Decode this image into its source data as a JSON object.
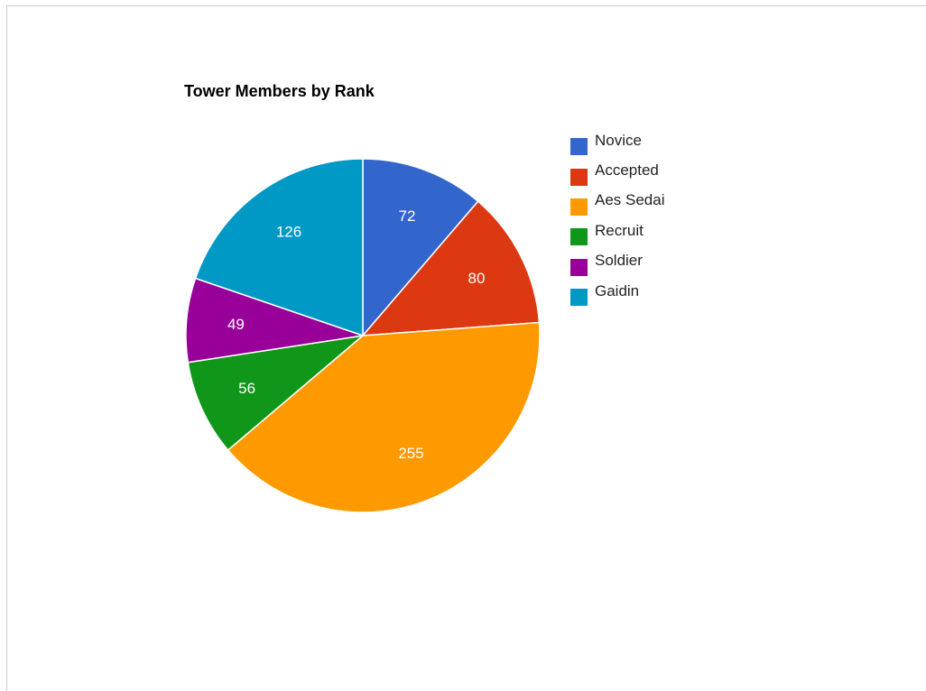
{
  "chart_data": {
    "type": "pie",
    "title": "Tower Members by Rank",
    "categories": [
      "Novice",
      "Accepted",
      "Aes Sedai",
      "Recruit",
      "Soldier",
      "Gaidin"
    ],
    "values": [
      72,
      80,
      255,
      56,
      49,
      126
    ],
    "colors": [
      "#3366cc",
      "#dc3912",
      "#ff9900",
      "#109618",
      "#990099",
      "#0099c6"
    ],
    "data_labels": [
      "72",
      "80",
      "255",
      "56",
      "49",
      "126"
    ],
    "legend_position": "right",
    "slice_border_color": "#ffffff",
    "data_label_color": "#ffffff"
  }
}
